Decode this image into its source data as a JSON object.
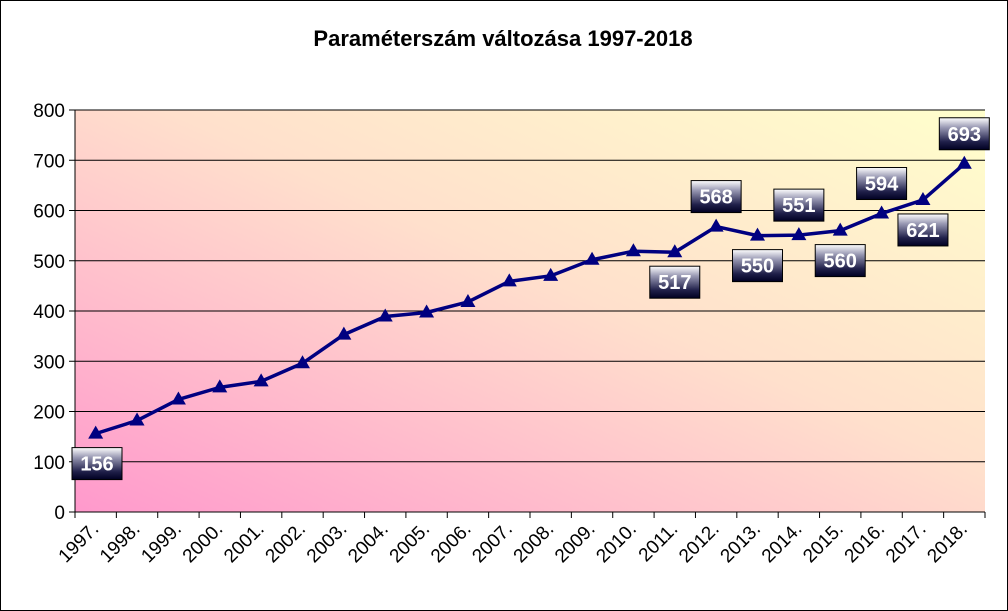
{
  "chart_data": {
    "type": "line",
    "title": "Paraméterszám változása 1997-2018",
    "categories": [
      "1997.",
      "1998.",
      "1999.",
      "2000.",
      "2001.",
      "2002.",
      "2003.",
      "2004.",
      "2005.",
      "2006.",
      "2007.",
      "2008.",
      "2009.",
      "2010.",
      "2011.",
      "2012.",
      "2013.",
      "2014.",
      "2015.",
      "2016.",
      "2017.",
      "2018."
    ],
    "series": [
      {
        "values": [
          156,
          182,
          224,
          248,
          260,
          296,
          353,
          389,
          397,
          418,
          459,
          470,
          502,
          519,
          517,
          568,
          550,
          551,
          560,
          594,
          621,
          693
        ],
        "color": "#000080"
      }
    ],
    "data_labels": [
      {
        "index": 0,
        "text": "156",
        "position": "below"
      },
      {
        "index": 14,
        "text": "517",
        "position": "below"
      },
      {
        "index": 15,
        "text": "568",
        "position": "above"
      },
      {
        "index": 16,
        "text": "550",
        "position": "below"
      },
      {
        "index": 17,
        "text": "551",
        "position": "above"
      },
      {
        "index": 18,
        "text": "560",
        "position": "below"
      },
      {
        "index": 19,
        "text": "594",
        "position": "above"
      },
      {
        "index": 20,
        "text": "621",
        "position": "below"
      },
      {
        "index": 21,
        "text": "693",
        "position": "above"
      }
    ],
    "ylim": [
      0,
      800
    ],
    "yticks": [
      0,
      100,
      200,
      300,
      400,
      500,
      600,
      700,
      800
    ],
    "ytick_labels": [
      "0",
      "100",
      "200",
      "300",
      "400",
      "500",
      "600",
      "700",
      "800"
    ],
    "grid": true,
    "legend": "none",
    "background_gradient": [
      "#ff99cc",
      "#ffffcc"
    ]
  }
}
